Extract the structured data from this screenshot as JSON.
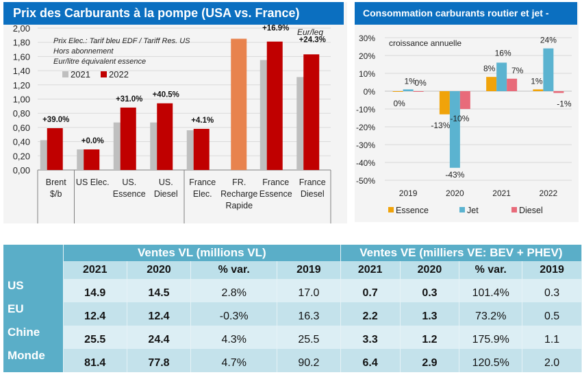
{
  "chart_data": [
    {
      "type": "bar",
      "title": "Prix des Carburants à la pompe (USA vs. France)",
      "ylabel": "Eur/leq",
      "ylim": [
        0,
        2.0
      ],
      "yticks": [
        "0,00",
        "0,20",
        "0,40",
        "0,60",
        "0,80",
        "1,00",
        "1,20",
        "1,40",
        "1,60",
        "1,80",
        "2,00"
      ],
      "grid": true,
      "notes": [
        "Prix Elec.: Tarif bleu EDF / Tariff Res. US",
        "Hors abonnement",
        "Eur/litre équivalent essence"
      ],
      "unit_label": "Eur/leq",
      "legend": [
        {
          "name": "2021",
          "color": "#bfbfbf"
        },
        {
          "name": "2022",
          "color": "#c00000"
        }
      ],
      "categories": [
        {
          "label": [
            "Brent",
            "$/b"
          ]
        },
        {
          "label": [
            "US Elec."
          ]
        },
        {
          "label": [
            "US.",
            "Essence"
          ]
        },
        {
          "label": [
            "US.",
            "Diesel"
          ]
        },
        {
          "label": [
            "France",
            "Elec."
          ]
        },
        {
          "label": [
            "FR.",
            "Recharge",
            "Rapide"
          ]
        },
        {
          "label": [
            "France",
            "Essence"
          ]
        },
        {
          "label": [
            "France",
            "Diesel"
          ]
        }
      ],
      "groups_separators_after": [
        0,
        3
      ],
      "series": [
        {
          "name": "2021",
          "color": "#bfbfbf",
          "values": [
            0.42,
            0.29,
            0.67,
            0.67,
            0.56,
            null,
            1.55,
            1.31
          ]
        },
        {
          "name": "2022",
          "color": "#c00000",
          "values": [
            0.59,
            0.29,
            0.88,
            0.94,
            0.58,
            null,
            1.81,
            1.63
          ]
        },
        {
          "name": "FR. Recharge Rapide",
          "color": "#e8834e",
          "values": [
            null,
            null,
            null,
            null,
            null,
            1.85,
            null,
            null
          ]
        }
      ],
      "data_labels": [
        "+39.0%",
        "+0.0%",
        "+31.0%",
        "+40.5%",
        "+4.1%",
        "",
        "+16.9%",
        "+24.3%"
      ]
    },
    {
      "type": "bar",
      "title": "Consommation carburants routier et jet -",
      "subtitle": "croissance annuelle",
      "ylim": [
        -0.5,
        0.3
      ],
      "yticks": [
        "-50%",
        "-40%",
        "-30%",
        "-20%",
        "-10%",
        "0%",
        "10%",
        "20%",
        "30%"
      ],
      "grid": true,
      "legend_position": "bottom",
      "categories": [
        "2019",
        "2020",
        "2021",
        "2022"
      ],
      "series": [
        {
          "name": "Essence",
          "color": "#f0a30a",
          "values": [
            0.0,
            -0.13,
            0.08,
            0.01
          ],
          "labels": [
            "0%",
            "-13%",
            "8%",
            "1%"
          ]
        },
        {
          "name": "Jet",
          "color": "#5bb3d0",
          "values": [
            0.01,
            -0.43,
            0.16,
            0.24
          ],
          "labels": [
            "1%",
            "-43%",
            "16%",
            "24%"
          ]
        },
        {
          "name": "Diesel",
          "color": "#e86b7a",
          "values": [
            0.0,
            -0.1,
            0.07,
            -0.01
          ],
          "labels": [
            "0%",
            "-10%",
            "7%",
            "-1%"
          ]
        }
      ]
    },
    {
      "type": "table",
      "groups": [
        "Ventes VL (millions VL)",
        "Ventes VE (milliers VE: BEV + PHEV)"
      ],
      "columns": [
        "2021",
        "2020",
        "% var.",
        "2019",
        "2021",
        "2020",
        "% var.",
        "2019"
      ],
      "rows": [
        {
          "label": "US",
          "values": [
            "14.9",
            "14.5",
            "2.8%",
            "17.0",
            "0.7",
            "0.3",
            "101.4%",
            "0.3"
          ]
        },
        {
          "label": "EU",
          "values": [
            "12.4",
            "12.4",
            "-0.3%",
            "16.3",
            "2.2",
            "1.3",
            "73.2%",
            "0.5"
          ]
        },
        {
          "label": "Chine",
          "values": [
            "25.5",
            "24.4",
            "4.3%",
            "25.5",
            "3.3",
            "1.2",
            "175.9%",
            "1.1"
          ]
        },
        {
          "label": "Monde",
          "values": [
            "81.4",
            "77.8",
            "4.7%",
            "90.2",
            "6.4",
            "2.9",
            "120.5%",
            "2.0"
          ]
        }
      ]
    }
  ],
  "left": {
    "title": "Prix des Carburants à la pompe (USA vs. France)"
  },
  "right": {
    "title": "Consommation carburants routier et jet -"
  },
  "table": {
    "group_vl": "Ventes VL (millions VL)",
    "group_ve": "Ventes VE (milliers VE: BEV + PHEV)",
    "col_2021": "2021",
    "col_2020": "2020",
    "col_var": "% var.",
    "col_2019": "2019"
  }
}
